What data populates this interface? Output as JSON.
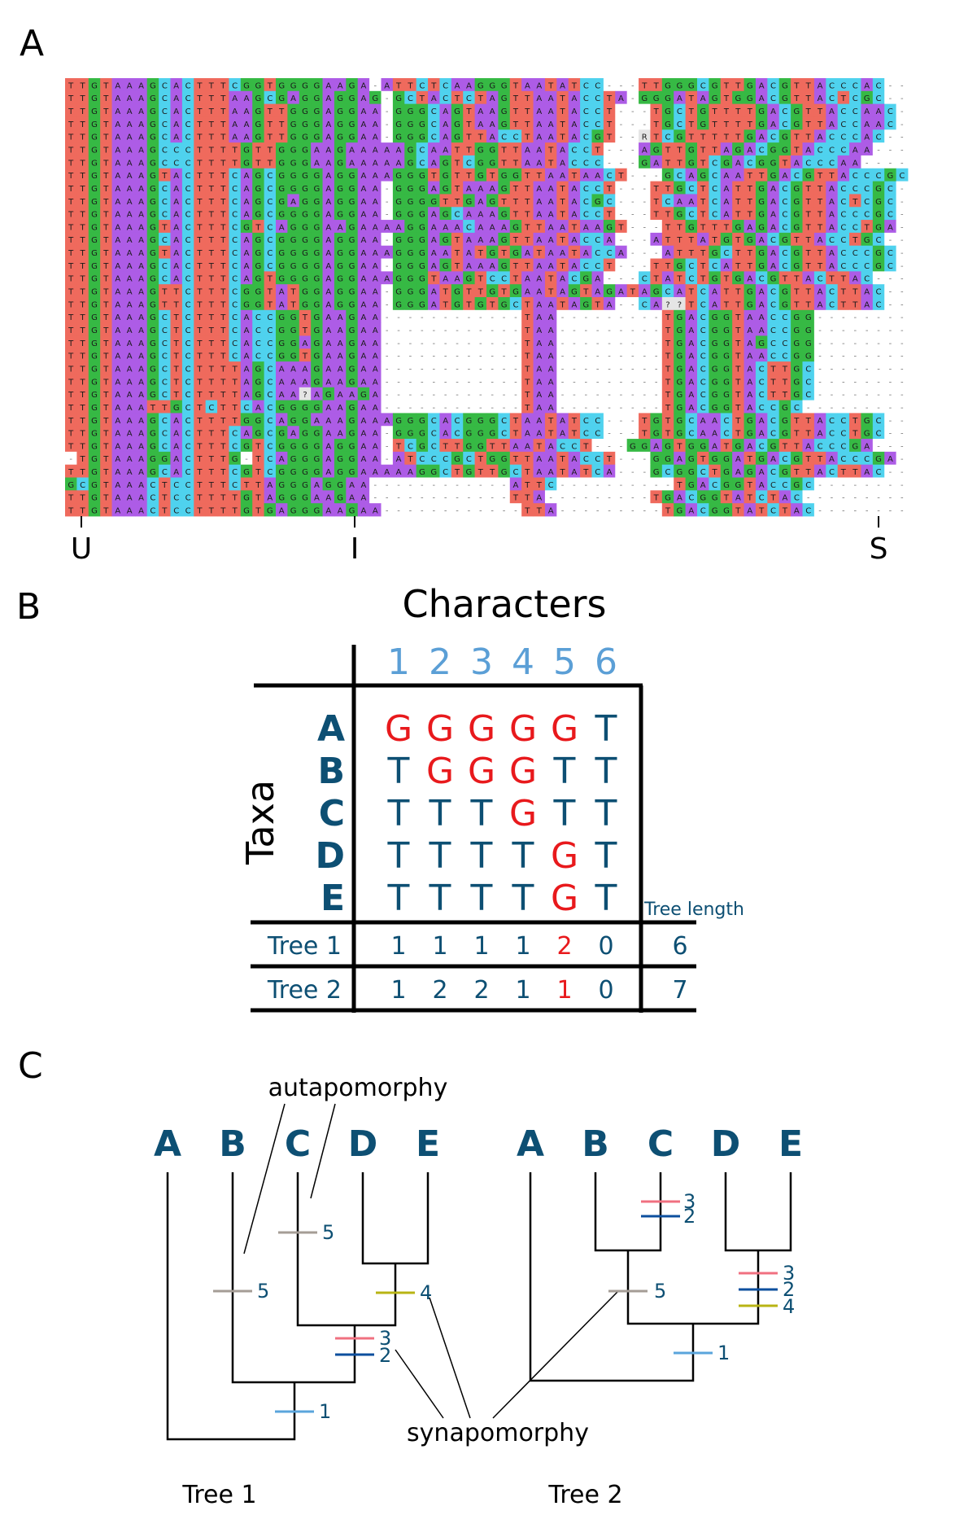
{
  "panels": {
    "a": "A",
    "b": "B",
    "c": "C"
  },
  "alignment": {
    "rows": [
      "TTGTAAAGCACTTTCGGTGGGGAAGA-ATTCTCAAGGGTAATATCC---TTGGGCGTTGACGTTACCCAC",
      "TTGTAAAGCACTTTAAGCGAGGAGGAG-GCTACTCTAGTTAATACCTA-GGGATAGTGGACGTTACTCGC",
      "TTGTAAAGCACTTTAAGTTGGGAGGAA-GGGCAGTAAGTTAATACCT---TGCTGTTTTGACGTTACCAAC",
      "TTGTAAAGCACTTTAAGTTGGGAGGAA-GGGCAGTAAGTTAATACCT---TGCTGTTTTGACGTTACCAAC",
      "TTGTAAAGCACTTTAAGTTGGGAGGAA-GGGCAGTTACCTAATACGT--RTCGTTTTTGACGTTACCCAC",
      "TTGTAAAGCCCTTTTGTTGGGAAGAAAAAGCAATTGGTTAATACCT---AGTTGTTAGACGGTACCCAA",
      "TTGTAAAGCCCTTTTGTTGGGAAGAAAAAGCAGTCGGTTAATACCC---GATTGTCGACGGTACCCAA",
      "TTGTAAAGTACTTTCAGCGGGGAGGAAAGGGTGTTGTGGTTAATAACT---GCAGCAATTGACGTTACCCGC",
      "TTGTAAAGCACTTTCAGCGGGGAGGAA-GGGAGTAAAGTTAATACCT---TTGCTCATTGACGTTACCCGC",
      "TTGTAAAGCACTTTCAGCGAGGAGGAA-GGGGTTGAGTTTAATACGC---TCAATCATTGACGTTACTCGC",
      "TTGTAAAGCACTTTCAGCGGGGAGGAA-GGGAGCAAAGTTAATACCT---TTGCTCATTGACGTTACCCGC",
      "TTGTAAAGTACTTTCGTCAGGGAAGAAAAGGAAACAAAGTTAATAAGT---TTGTTTGAGACGTTACCTGA",
      "TTGTAAAGCACTTTCAGCGGGGAGGAA-GGGAGTAAAGTTAATACCA---ATTTATGTGACGTTACCTGC",
      "TTGTAAAGTACTTTCAGCGGGGAGGAAAGGGAATATGTGATAATACCA---ATTTGCTTGACGTTACCCGC",
      "TTGTAAAGCACTTTCAGCGGGGAGGAA-GGGAGTAAAGTTAATACCT---TTGCTCATTGACGTTACCCGC",
      "TTGTAAAGCACTTTCAGTGGGGAGGAAAGGGTAAGTCCTAATACGA---CTATCTGTGACGTTACTTAC",
      "TTGTAAAGTTCTTTCGGTATGGAGGAA-GGGATGTTGTGAATAGTAGATAGCATCATTGACGTTACTTAC",
      "TTGTAAAGTTCTTTCGGTATGGAGGAA-GGGATGTGTGCTAATAGTA--CA??TCATTGACGTTACTTAC",
      "TTGTAAAGCTCTTTCACCGGTGAAGAA------------TAA---------TGACGGTAACCGG",
      "TTGTAAAGCTCTTTCACCGGTGAAGAA------------TAA---------TGACGGTAACCGG",
      "TTGTAAAGCTCTTTCACCGGAGAAGAA------------TAA---------TGACGGTAGCCGG",
      "TTGTAAAGCTCTTTCACCGGTGAAGAA------------TAA---------TGACGGTAACCGG",
      "TTGTAAAGCTCTTTTAGCAAAGAAGAA------------TAA---------TGACGGTACTTGC",
      "TTGTAAAGCTCTTTTAGCAAAGAAGAA------------TAA---------TGACGGTACTTGC",
      "TTGTAAAGCTCTTTTAGCAA?AGAAGA------------TAA---------TGACGGTACTTGC",
      "TTGTAAATTGCTCTTCACGGGGAAGAA------------TAA---------TGACGGTACCGC",
      "TTGTAAAGCACTTTTGGCAGGAAAGAAAGGGCACGGGCTAATATCC---TGTGCAACTGACGTTACCTGC",
      "TTGTAAAGCACTTTCAGCGAGGAAGAA-GGGCACGGGCTAATATCC---TGTGCAACTGACGTTACCTGC",
      "TTGTAAAGCACTTTCGTCGGGGAGGAA-TCGCTTGGTTAATACCT---GGAGTGGATGACGTTACCCGA",
      "-TGTAAAGGACTTTG-TCAGGGAGGAA-ATCCCGCTGGTTAATACCT---GGAGTGGATGACGTTACCCGA",
      "TTGTAAAGCACTTTCGTCGGGGAGGAAAAAGGCTGTTGCTAATATCA---GCGGCTGAGACGTTACTTAC",
      "GCGTAAACTCCTTTCTTAGGGAGGAA------------ATTC----------TGACGGTACCGC",
      "TTGTAAACTCCTTTTGTAGGGAAGAA------------TTA---------TGACGGTATCTAC",
      "TTGTAAACTCCTTTTGTGAGGGAAGAA------------TTA---------TGACGGTATCTAC"
    ],
    "colors": {
      "T": "#ef6a5d",
      "G": "#36b944",
      "A": "#ad5ce6",
      "C": "#4fd2ee",
      "gap": "#ffffff",
      "other": "#e5e5e5"
    },
    "markers": [
      "U",
      "I",
      "S"
    ]
  },
  "matrix": {
    "title": "Characters",
    "taxa_label": "Taxa",
    "columns": [
      "1",
      "2",
      "3",
      "4",
      "5",
      "6"
    ],
    "rows": [
      {
        "taxon": "A",
        "states": [
          "G",
          "G",
          "G",
          "G",
          "G",
          "T"
        ]
      },
      {
        "taxon": "B",
        "states": [
          "T",
          "G",
          "G",
          "G",
          "T",
          "T"
        ]
      },
      {
        "taxon": "C",
        "states": [
          "T",
          "T",
          "T",
          "G",
          "T",
          "T"
        ]
      },
      {
        "taxon": "D",
        "states": [
          "T",
          "T",
          "T",
          "T",
          "G",
          "T"
        ]
      },
      {
        "taxon": "E",
        "states": [
          "T",
          "T",
          "T",
          "T",
          "G",
          "T"
        ]
      }
    ],
    "tree_length_label": "Tree length",
    "trees": [
      {
        "name": "Tree 1",
        "steps": [
          "1",
          "1",
          "1",
          "1",
          "2",
          "0"
        ],
        "length": "6"
      },
      {
        "name": "Tree 2",
        "steps": [
          "1",
          "2",
          "2",
          "1",
          "1",
          "0"
        ],
        "length": "7"
      }
    ],
    "colors": {
      "derived": "#e8191c",
      "ancestral": "#0d4f73",
      "header": "#5b9fd6"
    }
  },
  "trees_panel": {
    "autapomorphy_label": "autapomorphy",
    "synapomorphy_label": "synapomorphy",
    "tree1": {
      "name": "Tree 1",
      "taxa": [
        "A",
        "B",
        "C",
        "D",
        "E"
      ],
      "character_marks": [
        "5",
        "5",
        "4",
        "3",
        "2",
        "1"
      ]
    },
    "tree2": {
      "name": "Tree 2",
      "taxa": [
        "A",
        "B",
        "C",
        "D",
        "E"
      ],
      "character_marks": [
        "3",
        "2",
        "5",
        "3",
        "2",
        "4",
        "1"
      ]
    },
    "mark_colors": {
      "1": "#5aa5dc",
      "2": "#0d4f9e",
      "3": "#f07080",
      "4": "#b8b414",
      "5": "#a59d96"
    },
    "branch_color": "#000000",
    "taxon_color": "#0d4f73",
    "label_color": "#0d4f73"
  }
}
